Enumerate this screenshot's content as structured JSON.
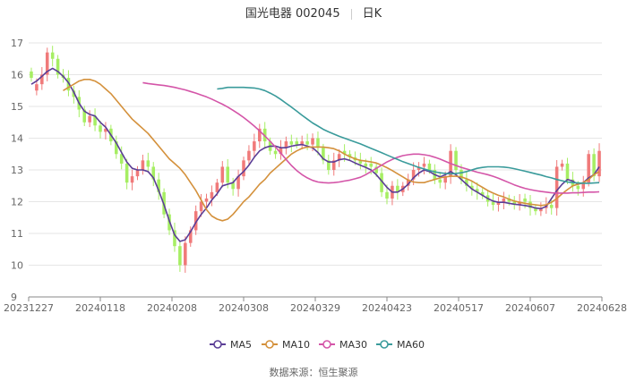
{
  "header": {
    "stock_name_code": "国光电器 002045",
    "period": "日K"
  },
  "source": "数据来源：恒生聚源",
  "colors": {
    "up": "#f07a7a",
    "down": "#a6ee63",
    "ma5": "#5b3e96",
    "ma10": "#d4913c",
    "ma30": "#d455a8",
    "ma60": "#3a9b9b",
    "grid": "#e6e6e6",
    "axis": "#888888",
    "label": "#666666"
  },
  "chart_data": {
    "type": "candlestick",
    "title": "国光电器 002045 日K",
    "ylim": [
      9,
      17
    ],
    "yticks": [
      9,
      10,
      11,
      12,
      13,
      14,
      15,
      16,
      17
    ],
    "xtick_labels": [
      "20231227",
      "20240118",
      "20240208",
      "20240308",
      "20240329",
      "20240423",
      "20240517",
      "20240607",
      "20240628"
    ],
    "legend": [
      "MA5",
      "MA10",
      "MA30",
      "MA60"
    ],
    "legend_position": "bottom",
    "grid": true,
    "candles_close": [
      15.9,
      15.7,
      16.0,
      16.7,
      16.5,
      16.0,
      15.9,
      15.5,
      15.3,
      14.9,
      14.5,
      14.7,
      14.4,
      14.2,
      14.3,
      13.9,
      13.5,
      13.2,
      12.6,
      12.8,
      13.0,
      13.3,
      13.1,
      12.7,
      12.3,
      11.6,
      11.1,
      10.6,
      10.0,
      10.7,
      11.1,
      11.7,
      12.0,
      12.1,
      12.3,
      12.6,
      13.1,
      12.6,
      12.4,
      12.8,
      13.3,
      13.6,
      13.9,
      14.3,
      13.9,
      13.6,
      13.5,
      13.7,
      13.9,
      13.8,
      13.8,
      13.9,
      13.8,
      14.0,
      13.7,
      13.3,
      13.0,
      13.3,
      13.5,
      13.5,
      13.4,
      13.3,
      13.2,
      13.1,
      13.1,
      12.9,
      12.3,
      12.1,
      12.5,
      12.3,
      12.5,
      12.7,
      13.0,
      13.1,
      13.2,
      13.0,
      12.7,
      12.6,
      12.8,
      13.6,
      13.0,
      12.7,
      12.5,
      12.4,
      12.3,
      12.2,
      12.0,
      11.9,
      12.0,
      12.1,
      12.0,
      11.9,
      12.0,
      12.0,
      11.8,
      11.7,
      11.8,
      11.9,
      11.8,
      13.1,
      13.2,
      12.7,
      12.5,
      12.4,
      12.6,
      13.5,
      12.8,
      13.6
    ],
    "candles_dir": [
      "d",
      "u",
      "u",
      "u",
      "d",
      "d",
      "d",
      "d",
      "d",
      "d",
      "d",
      "u",
      "d",
      "d",
      "u",
      "d",
      "d",
      "d",
      "d",
      "u",
      "u",
      "u",
      "d",
      "d",
      "d",
      "d",
      "d",
      "d",
      "d",
      "u",
      "u",
      "u",
      "u",
      "u",
      "u",
      "u",
      "u",
      "d",
      "d",
      "u",
      "u",
      "u",
      "u",
      "u",
      "d",
      "d",
      "d",
      "u",
      "u",
      "d",
      "d",
      "u",
      "d",
      "u",
      "d",
      "d",
      "d",
      "u",
      "u",
      "d",
      "d",
      "d",
      "d",
      "d",
      "d",
      "d",
      "d",
      "d",
      "u",
      "d",
      "u",
      "u",
      "u",
      "u",
      "u",
      "d",
      "d",
      "d",
      "u",
      "u",
      "d",
      "d",
      "d",
      "d",
      "d",
      "d",
      "d",
      "d",
      "u",
      "u",
      "d",
      "d",
      "u",
      "d",
      "d",
      "d",
      "u",
      "u",
      "d",
      "u",
      "u",
      "d",
      "d",
      "d",
      "u",
      "u",
      "d",
      "u"
    ],
    "ma5": [
      15.7,
      15.8,
      15.95,
      16.1,
      16.2,
      16.1,
      15.95,
      15.75,
      15.45,
      15.1,
      14.85,
      14.75,
      14.7,
      14.5,
      14.35,
      14.1,
      13.85,
      13.55,
      13.25,
      13.05,
      13.0,
      13.0,
      12.95,
      12.75,
      12.35,
      11.9,
      11.4,
      10.95,
      10.75,
      10.8,
      11.05,
      11.35,
      11.6,
      11.8,
      12.05,
      12.25,
      12.5,
      12.55,
      12.6,
      12.8,
      12.95,
      13.15,
      13.4,
      13.6,
      13.7,
      13.75,
      13.75,
      13.7,
      13.7,
      13.75,
      13.78,
      13.8,
      13.75,
      13.7,
      13.55,
      13.35,
      13.25,
      13.25,
      13.32,
      13.35,
      13.3,
      13.22,
      13.15,
      13.08,
      13.0,
      12.85,
      12.65,
      12.45,
      12.3,
      12.3,
      12.4,
      12.55,
      12.75,
      12.9,
      13.0,
      12.95,
      12.85,
      12.78,
      12.85,
      12.95,
      12.85,
      12.7,
      12.55,
      12.4,
      12.3,
      12.2,
      12.1,
      12.02,
      11.98,
      11.98,
      11.95,
      11.92,
      11.9,
      11.88,
      11.85,
      11.8,
      11.78,
      11.85,
      12.1,
      12.35,
      12.55,
      12.7,
      12.65,
      12.55,
      12.6,
      12.75,
      12.85,
      13.1
    ],
    "ma10": [
      15.5,
      15.6,
      15.7,
      15.8,
      15.85,
      15.85,
      15.8,
      15.7,
      15.55,
      15.4,
      15.2,
      15.0,
      14.8,
      14.6,
      14.45,
      14.3,
      14.15,
      13.95,
      13.75,
      13.55,
      13.35,
      13.2,
      13.05,
      12.85,
      12.6,
      12.35,
      12.05,
      11.75,
      11.55,
      11.45,
      11.4,
      11.45,
      11.6,
      11.8,
      12.0,
      12.15,
      12.35,
      12.55,
      12.7,
      12.9,
      13.05,
      13.2,
      13.35,
      13.5,
      13.6,
      13.68,
      13.72,
      13.72,
      13.72,
      13.72,
      13.7,
      13.67,
      13.6,
      13.5,
      13.42,
      13.35,
      13.3,
      13.28,
      13.25,
      13.22,
      13.15,
      13.07,
      12.98,
      12.88,
      12.78,
      12.68,
      12.62,
      12.6,
      12.6,
      12.65,
      12.7,
      12.75,
      12.78,
      12.8,
      12.8,
      12.78,
      12.72,
      12.65,
      12.55,
      12.45,
      12.35,
      12.27,
      12.2,
      12.15,
      12.08,
      12.02,
      11.98,
      11.95,
      11.92,
      11.9,
      11.88,
      11.9,
      11.98,
      12.1,
      12.25,
      12.38,
      12.5,
      12.55,
      12.6,
      12.7,
      12.85,
      12.95
    ],
    "ma30": [
      15.75,
      15.72,
      15.7,
      15.68,
      15.66,
      15.63,
      15.6,
      15.56,
      15.52,
      15.47,
      15.42,
      15.36,
      15.3,
      15.23,
      15.15,
      15.07,
      14.98,
      14.88,
      14.77,
      14.65,
      14.52,
      14.38,
      14.23,
      14.07,
      13.9,
      13.72,
      13.53,
      13.33,
      13.14,
      12.98,
      12.85,
      12.75,
      12.67,
      12.62,
      12.6,
      12.59,
      12.6,
      12.62,
      12.65,
      12.68,
      12.72,
      12.77,
      12.85,
      12.95,
      13.05,
      13.15,
      13.25,
      13.33,
      13.4,
      13.45,
      13.48,
      13.5,
      13.5,
      13.48,
      13.45,
      13.4,
      13.34,
      13.27,
      13.2,
      13.14,
      13.08,
      13.03,
      12.98,
      12.93,
      12.89,
      12.85,
      12.8,
      12.74,
      12.67,
      12.6,
      12.53,
      12.47,
      12.42,
      12.38,
      12.35,
      12.32,
      12.3,
      12.28,
      12.27,
      12.27,
      12.27,
      12.28,
      12.28,
      12.29,
      12.3,
      12.3,
      12.31
    ],
    "ma60": [
      15.55,
      15.57,
      15.6,
      15.6,
      15.6,
      15.6,
      15.59,
      15.58,
      15.55,
      15.5,
      15.42,
      15.33,
      15.22,
      15.1,
      14.98,
      14.85,
      14.72,
      14.6,
      14.48,
      14.38,
      14.28,
      14.2,
      14.13,
      14.06,
      14.0,
      13.94,
      13.88,
      13.82,
      13.75,
      13.68,
      13.61,
      13.54,
      13.47,
      13.4,
      13.33,
      13.26,
      13.2,
      13.14,
      13.08,
      13.03,
      12.98,
      12.94,
      12.91,
      12.89,
      12.88,
      12.89,
      12.91,
      12.95,
      13.0,
      13.05,
      13.08,
      13.1,
      13.1,
      13.1,
      13.09,
      13.07,
      13.04,
      13.0,
      12.96,
      12.92,
      12.88,
      12.84,
      12.79,
      12.75,
      12.7,
      12.66,
      12.62,
      12.6,
      12.59,
      12.58,
      12.58,
      12.59,
      12.6
    ]
  }
}
